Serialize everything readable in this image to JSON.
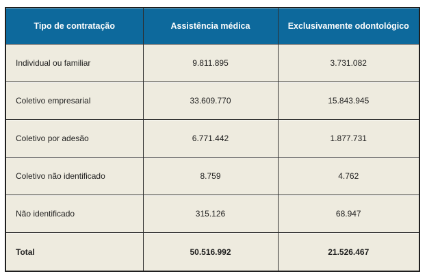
{
  "table": {
    "columns": [
      "Tipo de contratação",
      "Assistência médica",
      "Exclusivamente odontológico"
    ],
    "rows": [
      [
        "Individual ou familiar",
        "9.811.895",
        "3.731.082"
      ],
      [
        "Coletivo empresarial",
        "33.609.770",
        "15.843.945"
      ],
      [
        "Coletivo por adesão",
        "6.771.442",
        "1.877.731"
      ],
      [
        "Coletivo não identificado",
        "8.759",
        "4.762"
      ],
      [
        "Não identificado",
        "315.126",
        "68.947"
      ],
      [
        "Total",
        "50.516.992",
        "21.526.467"
      ]
    ],
    "colors": {
      "header_bg": "#0d699c",
      "header_text": "#fdfdfd",
      "cell_bg": "#eeebdf",
      "border": "#2e2e2e",
      "text": "#1d1d1d"
    }
  },
  "chart_data": {
    "type": "table",
    "title": "",
    "columns": [
      "Tipo de contratação",
      "Assistência médica",
      "Exclusivamente odontológico"
    ],
    "rows": [
      [
        "Individual ou familiar",
        9811895,
        3731082
      ],
      [
        "Coletivo empresarial",
        33609770,
        15843945
      ],
      [
        "Coletivo por adesão",
        6771442,
        1877731
      ],
      [
        "Coletivo não identificado",
        8759,
        4762
      ],
      [
        "Não identificado",
        315126,
        68947
      ],
      [
        "Total",
        50516992,
        21526467
      ]
    ]
  }
}
